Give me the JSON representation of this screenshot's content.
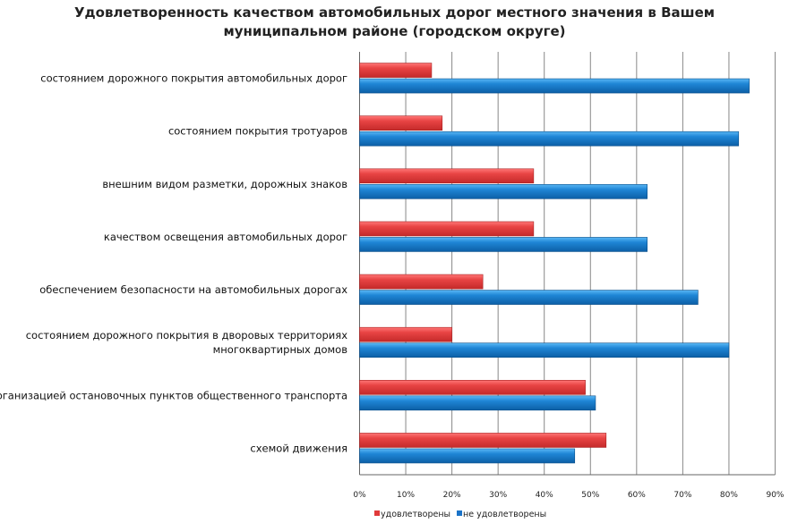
{
  "chart_data": {
    "type": "bar",
    "orientation": "horizontal",
    "title": "Удовлетворенность качеством автомобильных дорог местного значения в Вашем муниципальном районе (городском округе)",
    "title_lines": [
      "Удовлетворенность качеством автомобильных дорог местного значения в Вашем",
      "муниципальном районе (городском округе)"
    ],
    "categories": [
      [
        "состоянием дорожного покрытия автомобильных дорог"
      ],
      [
        "состоянием покрытия тротуаров"
      ],
      [
        "внешним видом разметки, дорожных знаков"
      ],
      [
        "качеством освещения автомобильных дорог"
      ],
      [
        "обеспечением безопасности на автомобильных дорогах"
      ],
      [
        "состоянием дорожного покрытия в дворовых территориях",
        "многоквартирных домов"
      ],
      [
        "организацией остановочных пунктов общественного транспорта"
      ],
      [
        "схемой движения"
      ]
    ],
    "series": [
      {
        "name": "удовлетворены",
        "color": "#e03a3a",
        "values": [
          15.6,
          17.9,
          37.7,
          37.7,
          26.7,
          20.0,
          48.9,
          53.4
        ]
      },
      {
        "name": "не удовлетворены",
        "color": "#1a73c8",
        "values": [
          84.4,
          82.1,
          62.3,
          62.3,
          73.3,
          80.0,
          51.1,
          46.6
        ]
      }
    ],
    "xlim": [
      0,
      90
    ],
    "xticks": [
      "0%",
      "10%",
      "20%",
      "30%",
      "40%",
      "50%",
      "60%",
      "70%",
      "80%",
      "90%"
    ],
    "grid": true,
    "legend_position": "bottom"
  }
}
